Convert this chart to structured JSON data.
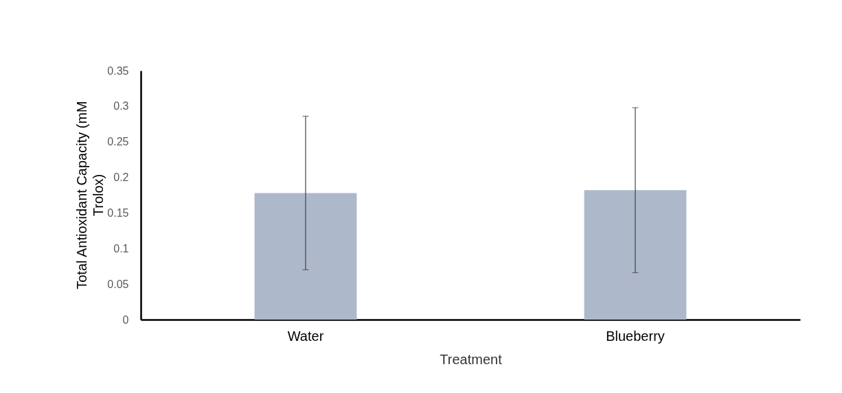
{
  "chart_data": {
    "type": "bar",
    "xlabel": "Treatment",
    "ylabel": "Total Antioxidant Capacity (mM Trolox)",
    "categories": [
      "Water",
      "Blueberry"
    ],
    "series": [
      {
        "color": "#adb9ca",
        "values": [
          0.178,
          0.182
        ],
        "errors": [
          [
            0.07,
            0.286
          ],
          [
            0.066,
            0.298
          ]
        ]
      }
    ],
    "ylim": [
      0,
      0.35
    ],
    "yticks": [
      0,
      0.05,
      0.1,
      0.15,
      0.2,
      0.25,
      0.3,
      0.35
    ],
    "grid": false
  }
}
